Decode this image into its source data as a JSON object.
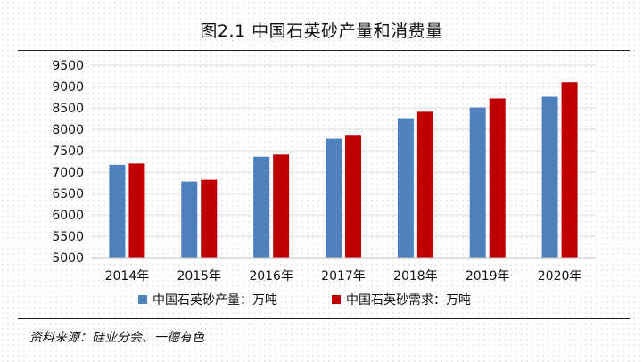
{
  "figure": {
    "title": "图2.1  中国石英砂产量和消费量",
    "source": "资料来源：硅业分会、一德有色"
  },
  "chart_data": {
    "type": "bar",
    "title": "图2.1  中国石英砂产量和消费量",
    "categories": [
      "2014年",
      "2015年",
      "2016年",
      "2017年",
      "2018年",
      "2019年",
      "2020年"
    ],
    "series": [
      {
        "name": "中国石英砂产量：万吨",
        "color": "#4f81bd",
        "values": [
          7170,
          6780,
          7360,
          7780,
          8260,
          8510,
          8760
        ]
      },
      {
        "name": "中国石英砂需求：万吨",
        "color": "#c00000",
        "values": [
          7200,
          6820,
          7410,
          7870,
          8410,
          8720,
          9100
        ]
      }
    ],
    "ylim": [
      5000,
      9500
    ],
    "yticks": [
      5000,
      5500,
      6000,
      6500,
      7000,
      7500,
      8000,
      8500,
      9000,
      9500
    ],
    "grid": true,
    "legend": "bottom",
    "xlabel": "",
    "ylabel": ""
  }
}
